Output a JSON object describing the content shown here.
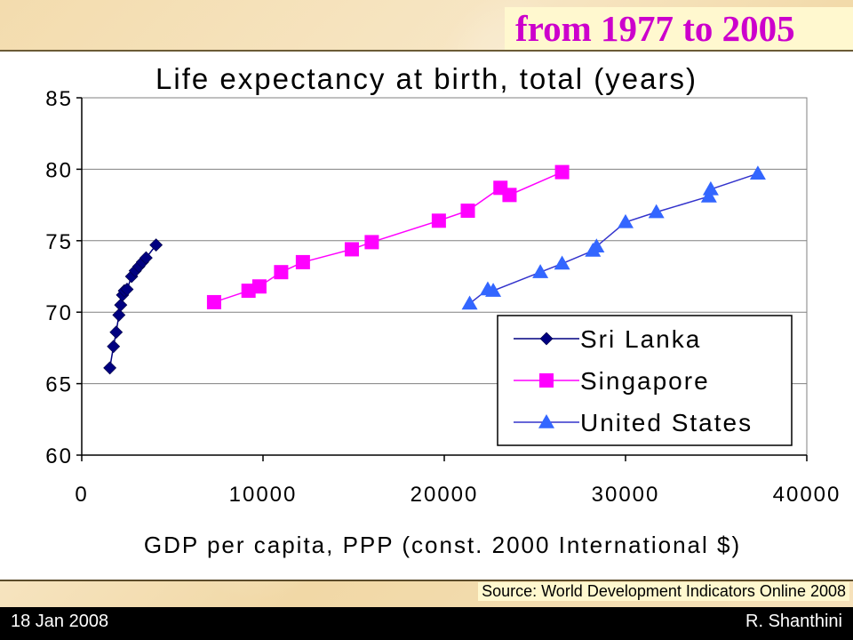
{
  "slide": {
    "heading": "from 1977 to 2005",
    "source": "Source: World Development Indicators Online 2008",
    "footer_left": "18 Jan 2008",
    "footer_right": "R. Shanthini"
  },
  "colors": {
    "heading": "#cc00cc",
    "sri_lanka": "#000080",
    "singapore": "#ff00ff",
    "united_states": "#3333cc",
    "united_states_marker": "#3366ff"
  },
  "chart_data": {
    "type": "scatter",
    "title": "Life expectancy at birth, total (years)",
    "xlabel": "GDP per capita, PPP (const. 2000 International $)",
    "ylabel": "",
    "xlim": [
      0,
      40000
    ],
    "ylim": [
      60,
      85
    ],
    "xticks": [
      "0",
      "10000",
      "20000",
      "30000",
      "40000"
    ],
    "yticks": [
      "60",
      "65",
      "70",
      "75",
      "80",
      "85"
    ],
    "grid": "horizontal",
    "legend_position": "bottom-right",
    "series": [
      {
        "name": "Sri Lanka",
        "marker": "diamond",
        "color": "#000080",
        "x": [
          1550,
          1750,
          1900,
          2050,
          2150,
          2250,
          2350,
          2500,
          2750,
          2950,
          3150,
          3350,
          3550,
          4100
        ],
        "y": [
          66.1,
          67.6,
          68.6,
          69.8,
          70.5,
          71.2,
          71.5,
          71.6,
          72.5,
          72.9,
          73.2,
          73.5,
          73.8,
          74.7
        ]
      },
      {
        "name": "Singapore",
        "marker": "square",
        "color": "#ff00ff",
        "x": [
          7300,
          9200,
          9800,
          11000,
          12200,
          14900,
          16000,
          19700,
          21300,
          23100,
          23600,
          26500
        ],
        "y": [
          70.7,
          71.5,
          71.8,
          72.8,
          73.5,
          74.4,
          74.9,
          76.4,
          77.1,
          78.7,
          78.2,
          79.8
        ]
      },
      {
        "name": "United States",
        "marker": "triangle",
        "color": "#3366ff",
        "x": [
          21400,
          22400,
          22700,
          25300,
          26500,
          28200,
          28400,
          30000,
          31700,
          34600,
          34700,
          37300
        ],
        "y": [
          70.6,
          71.6,
          71.5,
          72.8,
          73.4,
          74.3,
          74.6,
          76.3,
          77.0,
          78.1,
          78.6,
          79.7
        ]
      }
    ]
  }
}
